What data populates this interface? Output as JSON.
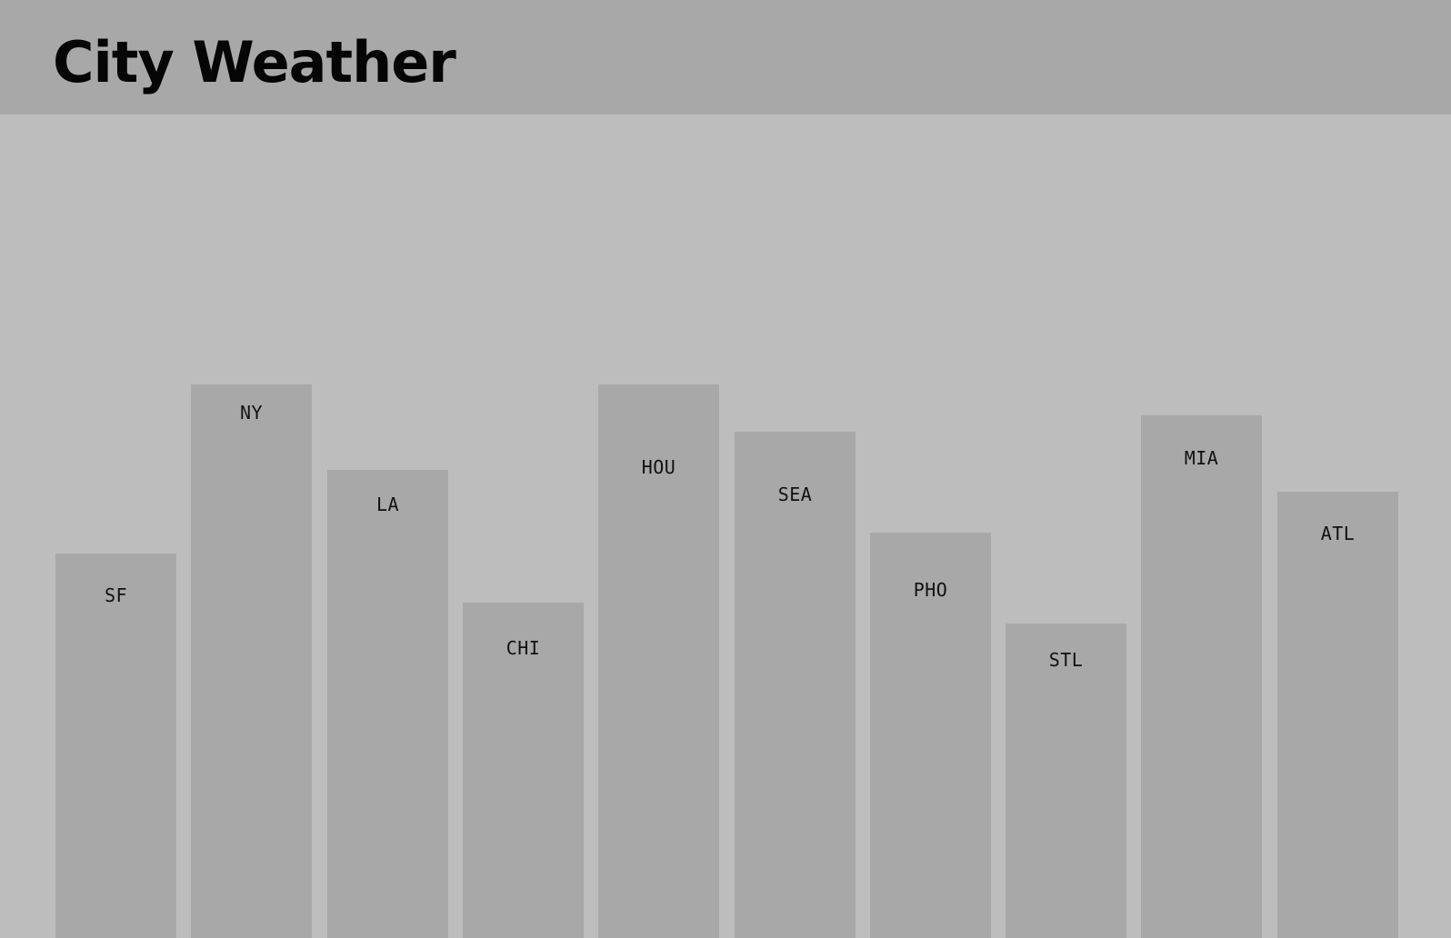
{
  "header": {
    "title": "City Weather"
  },
  "colors": {
    "background": "#bdbdbd",
    "header": "#a8a8a8",
    "bar": "#a8a8a8",
    "text": "#111111"
  },
  "chart_data": {
    "type": "bar",
    "title": "City Weather",
    "xlabel": "",
    "ylabel": "",
    "grid": false,
    "legend": "none",
    "categories": [
      "SF",
      "NY",
      "LA",
      "CHI",
      "HOU",
      "SEA",
      "PHO",
      "STL",
      "MIA",
      "ATL"
    ],
    "values": [
      423,
      609,
      515,
      369,
      609,
      557,
      446,
      346,
      575,
      491
    ],
    "ylim": [
      0,
      906
    ]
  }
}
